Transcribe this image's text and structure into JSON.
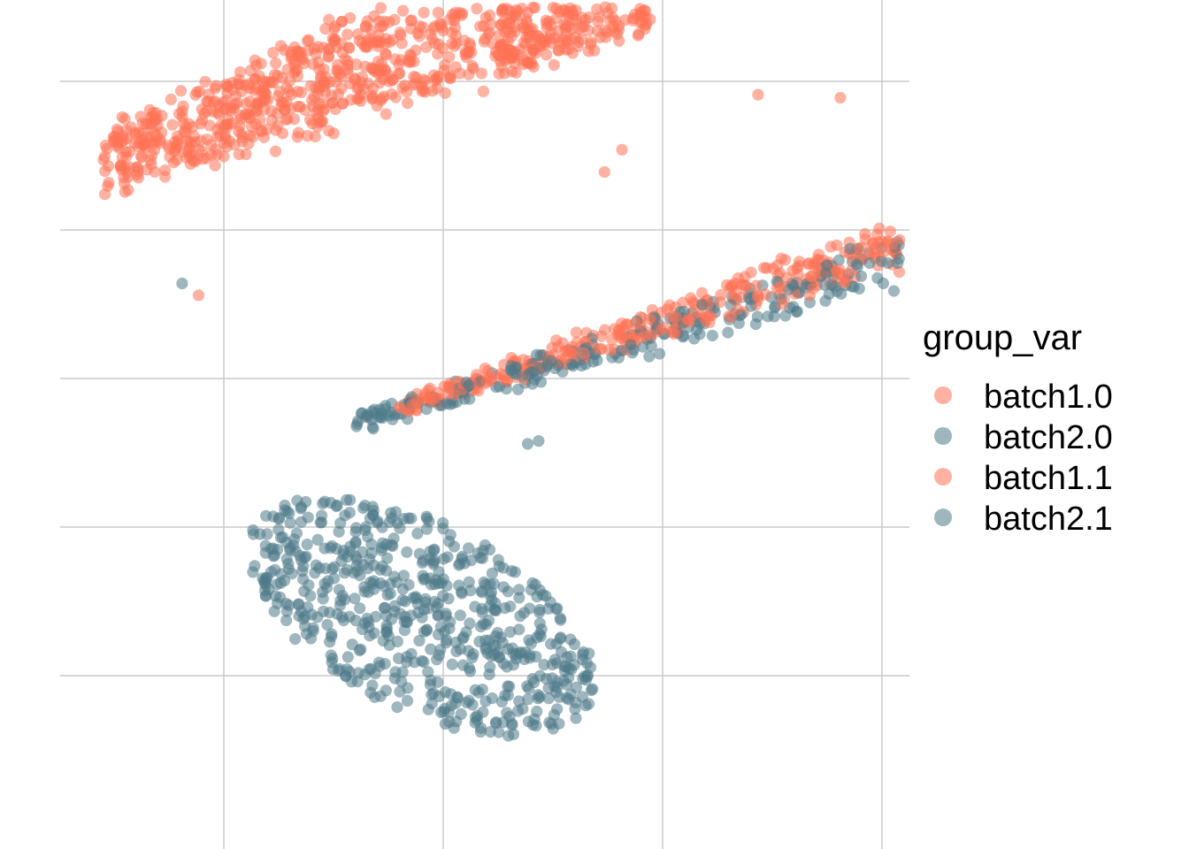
{
  "chart_data": {
    "type": "scatter",
    "title": "",
    "xlabel": "",
    "ylabel": "",
    "grid": true,
    "axis_text": false,
    "xlim": [
      -40,
      35
    ],
    "ylim": [
      -28,
      26
    ],
    "x_gridlines": [
      -30,
      -10,
      10,
      30
    ],
    "y_gridlines": [
      -25,
      -15,
      -5,
      5,
      15,
      25
    ],
    "point_alpha": 0.55,
    "legend": {
      "title": "group_var",
      "position": "right",
      "entries": [
        {
          "name": "batch1.0",
          "color": "#FF7256"
        },
        {
          "name": "batch2.0",
          "color": "#4F7A89"
        },
        {
          "name": "batch1.1",
          "color": "#FF7256"
        },
        {
          "name": "batch2.1",
          "color": "#4F7A89"
        }
      ]
    },
    "clusters": [
      {
        "description": "upper-left cluster",
        "group": "batch1.0",
        "color": "#FF7256",
        "n": 700,
        "region": {
          "kind": "band",
          "x_from": -41,
          "x_to": -2,
          "y_center_from": 9.5,
          "y_center_to": 20.5,
          "y_half_width_from": 2.5,
          "y_half_width_to": 5.5
        }
      },
      {
        "description": "upper-center cluster",
        "group": "batch1.1",
        "color": "#FF7256",
        "n": 260,
        "region": {
          "kind": "band",
          "x_from": -5,
          "x_to": 9,
          "y_center_from": 18,
          "y_center_to": 20.5,
          "y_half_width_from": 3.2,
          "y_half_width_to": 2.5
        }
      },
      {
        "description": "middle band, coral",
        "group": "batch1.1",
        "color": "#FF7256",
        "n": 340,
        "region": {
          "kind": "band",
          "x_from": -14,
          "x_to": 34,
          "y_center_from": -7,
          "y_center_to": 4.7,
          "y_half_width_from": 0.7,
          "y_half_width_to": 2.2
        }
      },
      {
        "description": "middle band, slate",
        "group": "batch2.1",
        "color": "#4F7A89",
        "n": 270,
        "region": {
          "kind": "band",
          "x_from": -18,
          "x_to": 35,
          "y_center_from": -8,
          "y_center_to": 3.5,
          "y_half_width_from": 0.7,
          "y_half_width_to": 2.2
        }
      },
      {
        "description": "lower-left cluster",
        "group": "batch2.0",
        "color": "#4F7A89",
        "n": 620,
        "region": {
          "kind": "ellipse",
          "center": [
            -12,
            -21
          ],
          "semi_axes": [
            16.5,
            6.6
          ],
          "rotation_deg": 18
        }
      }
    ],
    "individual_points": [
      {
        "group": "batch2.0",
        "x": -33.8,
        "y": 1.4
      },
      {
        "group": "batch1.0",
        "x": -32.3,
        "y": 0.6
      },
      {
        "group": "batch2.0",
        "x": -2.3,
        "y": -9.4
      },
      {
        "group": "batch2.0",
        "x": -1.3,
        "y": -9.2
      },
      {
        "group": "batch1.1",
        "x": 6.3,
        "y": 10.4
      },
      {
        "group": "batch1.1",
        "x": 18.7,
        "y": 14.1
      },
      {
        "group": "batch1.1",
        "x": 26.2,
        "y": 13.9
      },
      {
        "group": "batch1.1",
        "x": 4.7,
        "y": 8.9
      }
    ]
  }
}
